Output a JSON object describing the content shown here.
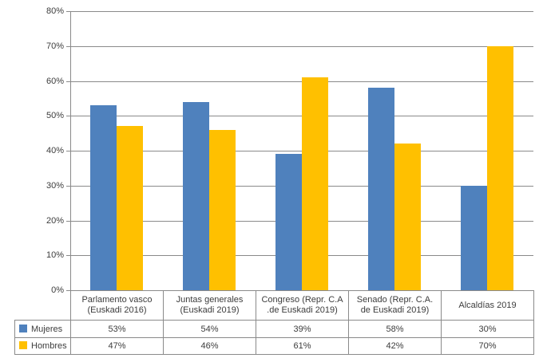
{
  "chart_data": {
    "type": "bar",
    "title": "",
    "xlabel": "",
    "ylabel": "",
    "categories": [
      "Parlamento vasco\n(Euskadi 2016)",
      "Juntas generales\n(Euskadi 2019)",
      "Congreso (Repr. C.A\n.de Euskadi 2019)",
      "Senado (Repr. C.A.\nde Euskadi 2019)",
      "Alcaldías 2019"
    ],
    "series": [
      {
        "name": "Mujeres",
        "color": "#4F81BD",
        "values": [
          53,
          54,
          39,
          58,
          30
        ]
      },
      {
        "name": "Hombres",
        "color": "#FFC000",
        "values": [
          47,
          46,
          61,
          42,
          70
        ]
      }
    ],
    "value_suffix": "%",
    "ylim": [
      0,
      80
    ],
    "ytick_step": 10,
    "yticks": [
      "0%",
      "10%",
      "20%",
      "30%",
      "40%",
      "50%",
      "60%",
      "70%",
      "80%"
    ],
    "grid": true,
    "legend_position": "data-table-left"
  },
  "colors": {
    "mujeres": "#4F81BD",
    "hombres": "#FFC000",
    "axis": "#8A8A8A",
    "grid": "#8A8A8A",
    "table_border": "#8A8A8A",
    "text": "#3C3C3C",
    "background": "#FFFFFF"
  }
}
